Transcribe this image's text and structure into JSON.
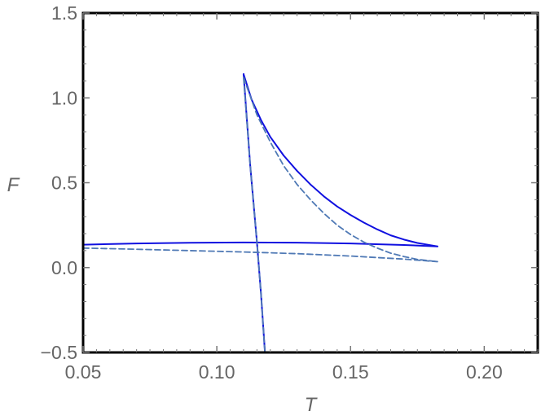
{
  "chart_data": {
    "type": "line",
    "xlabel": "T",
    "ylabel": "F",
    "xlim": [
      0.05,
      0.22
    ],
    "ylim": [
      -0.5,
      1.5
    ],
    "x_ticks": [
      0.05,
      0.1,
      0.15,
      0.2
    ],
    "x_tick_labels": [
      "0.05",
      "0.10",
      "0.15",
      "0.20"
    ],
    "y_ticks": [
      -0.5,
      0.0,
      0.5,
      1.0,
      1.5
    ],
    "y_tick_labels": [
      "−0.5",
      "0.0",
      "0.5",
      "1.0",
      "1.5"
    ],
    "grid": false,
    "colors": {
      "solid": "#1010e0",
      "dashed": "#4f79b5",
      "frame": "#000000",
      "tick_text": "#666666"
    },
    "series": [
      {
        "style": "solid",
        "points": [
          [
            0.11,
            1.14
          ],
          [
            0.113,
            0.99
          ],
          [
            0.1165,
            0.87
          ],
          [
            0.12,
            0.77
          ],
          [
            0.125,
            0.66
          ],
          [
            0.13,
            0.57
          ],
          [
            0.135,
            0.49
          ],
          [
            0.14,
            0.42
          ],
          [
            0.145,
            0.36
          ],
          [
            0.15,
            0.31
          ],
          [
            0.155,
            0.265
          ],
          [
            0.16,
            0.225
          ],
          [
            0.165,
            0.19
          ],
          [
            0.17,
            0.165
          ],
          [
            0.175,
            0.145
          ],
          [
            0.1825,
            0.125
          ]
        ]
      },
      {
        "style": "solid",
        "points": [
          [
            0.05,
            0.135
          ],
          [
            0.07,
            0.142
          ],
          [
            0.09,
            0.146
          ],
          [
            0.11,
            0.148
          ],
          [
            0.13,
            0.147
          ],
          [
            0.15,
            0.142
          ],
          [
            0.17,
            0.133
          ],
          [
            0.1825,
            0.125
          ]
        ]
      },
      {
        "style": "solid",
        "points": [
          [
            0.11,
            1.14
          ],
          [
            0.1125,
            0.6
          ],
          [
            0.115,
            0.15
          ],
          [
            0.1165,
            -0.15
          ],
          [
            0.118,
            -0.5
          ]
        ]
      },
      {
        "style": "dashed",
        "points": [
          [
            0.11,
            1.12
          ],
          [
            0.115,
            0.9
          ],
          [
            0.12,
            0.74
          ],
          [
            0.125,
            0.6
          ],
          [
            0.13,
            0.49
          ],
          [
            0.135,
            0.4
          ],
          [
            0.14,
            0.32
          ],
          [
            0.145,
            0.25
          ],
          [
            0.15,
            0.195
          ],
          [
            0.155,
            0.15
          ],
          [
            0.16,
            0.115
          ],
          [
            0.165,
            0.085
          ],
          [
            0.17,
            0.065
          ],
          [
            0.175,
            0.048
          ],
          [
            0.1825,
            0.035
          ]
        ]
      },
      {
        "style": "dashed",
        "points": [
          [
            0.05,
            0.115
          ],
          [
            0.07,
            0.108
          ],
          [
            0.09,
            0.1
          ],
          [
            0.11,
            0.092
          ],
          [
            0.13,
            0.082
          ],
          [
            0.15,
            0.068
          ],
          [
            0.17,
            0.05
          ],
          [
            0.1825,
            0.035
          ]
        ]
      },
      {
        "style": "dashed",
        "points": [
          [
            0.11,
            1.12
          ],
          [
            0.1125,
            0.6
          ],
          [
            0.115,
            0.15
          ],
          [
            0.1165,
            -0.15
          ],
          [
            0.118,
            -0.5
          ]
        ]
      }
    ]
  }
}
